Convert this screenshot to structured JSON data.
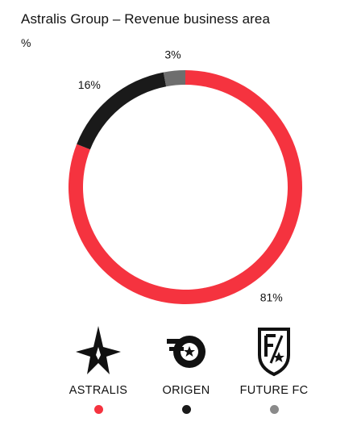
{
  "header": {
    "title": "Astralis Group – Revenue business area",
    "unit": "%"
  },
  "chart_data": {
    "type": "pie",
    "variant": "donut",
    "title": "Astralis Group – Revenue business area",
    "unit": "%",
    "categories": [
      "ASTRALIS",
      "ORIGEN",
      "FUTURE FC"
    ],
    "values": [
      81,
      16,
      3
    ],
    "labels": [
      "81%",
      "16%",
      "3%"
    ],
    "colors": [
      "#f5333f",
      "#1a1a1a",
      "#6e6e6e"
    ],
    "legend_placement": "bottom"
  },
  "legend": {
    "items": [
      {
        "label": "ASTRALIS",
        "icon": "astralis-star-logo",
        "color": "#f5333f"
      },
      {
        "label": "ORIGEN",
        "icon": "origen-logo",
        "color": "#1a1a1a"
      },
      {
        "label": "FUTURE FC",
        "icon": "future-fc-shield-logo",
        "color": "#8a8a8a"
      }
    ]
  }
}
